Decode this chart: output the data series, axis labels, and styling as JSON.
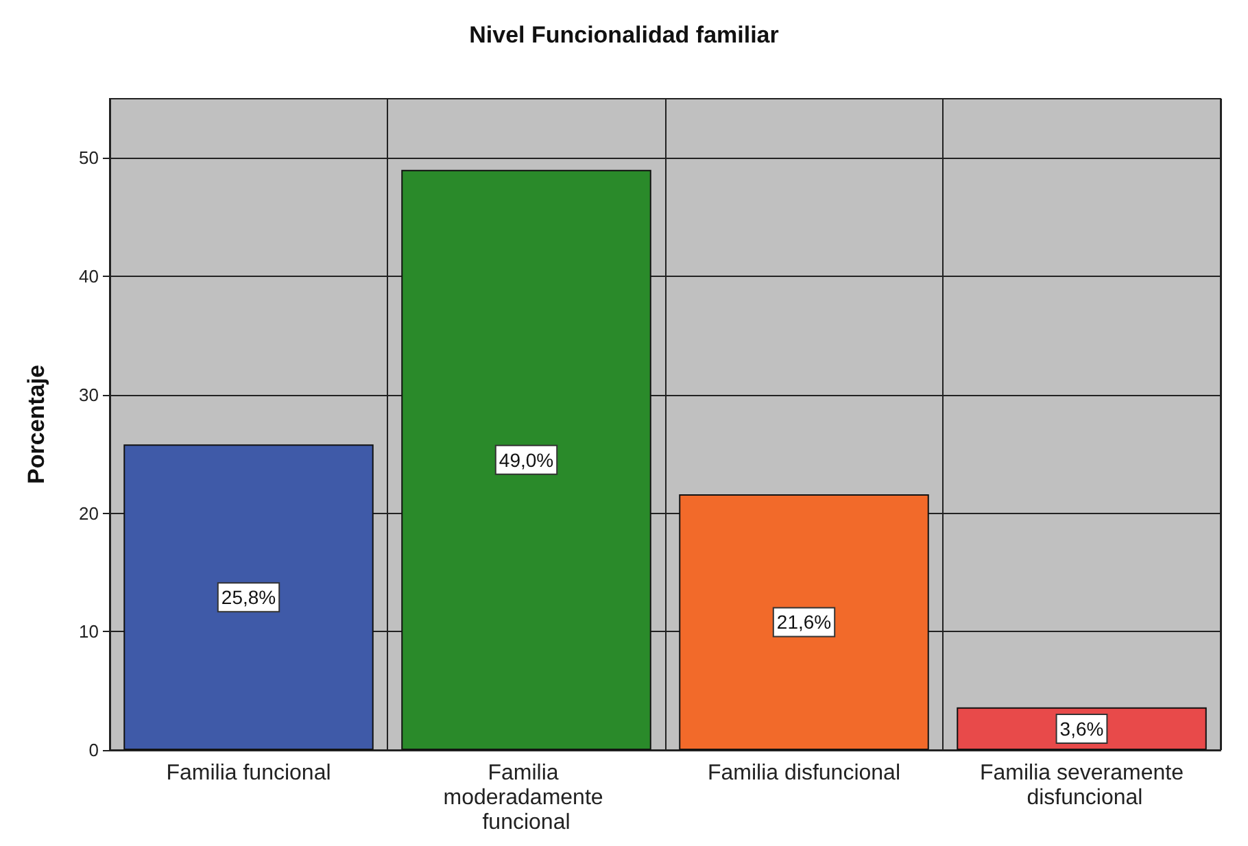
{
  "chart_data": {
    "type": "bar",
    "title": "Nivel Funcionalidad familiar",
    "ylabel": "Porcentaje",
    "categories": [
      "Familia funcional",
      "Familia moderadamente funcional",
      "Familia disfuncional",
      "Familia severamente disfuncional"
    ],
    "values": [
      25.8,
      49.0,
      21.6,
      3.6
    ],
    "colors": [
      "#3f5aa8",
      "#2a8a2a",
      "#f26a2a",
      "#e84a4a"
    ],
    "value_labels": [
      "25,8%",
      "49,0%",
      "21,6%",
      "3,6%"
    ],
    "ylim": [
      0,
      55
    ],
    "yticks": [
      0,
      10,
      20,
      30,
      40,
      50
    ],
    "grid": true
  }
}
